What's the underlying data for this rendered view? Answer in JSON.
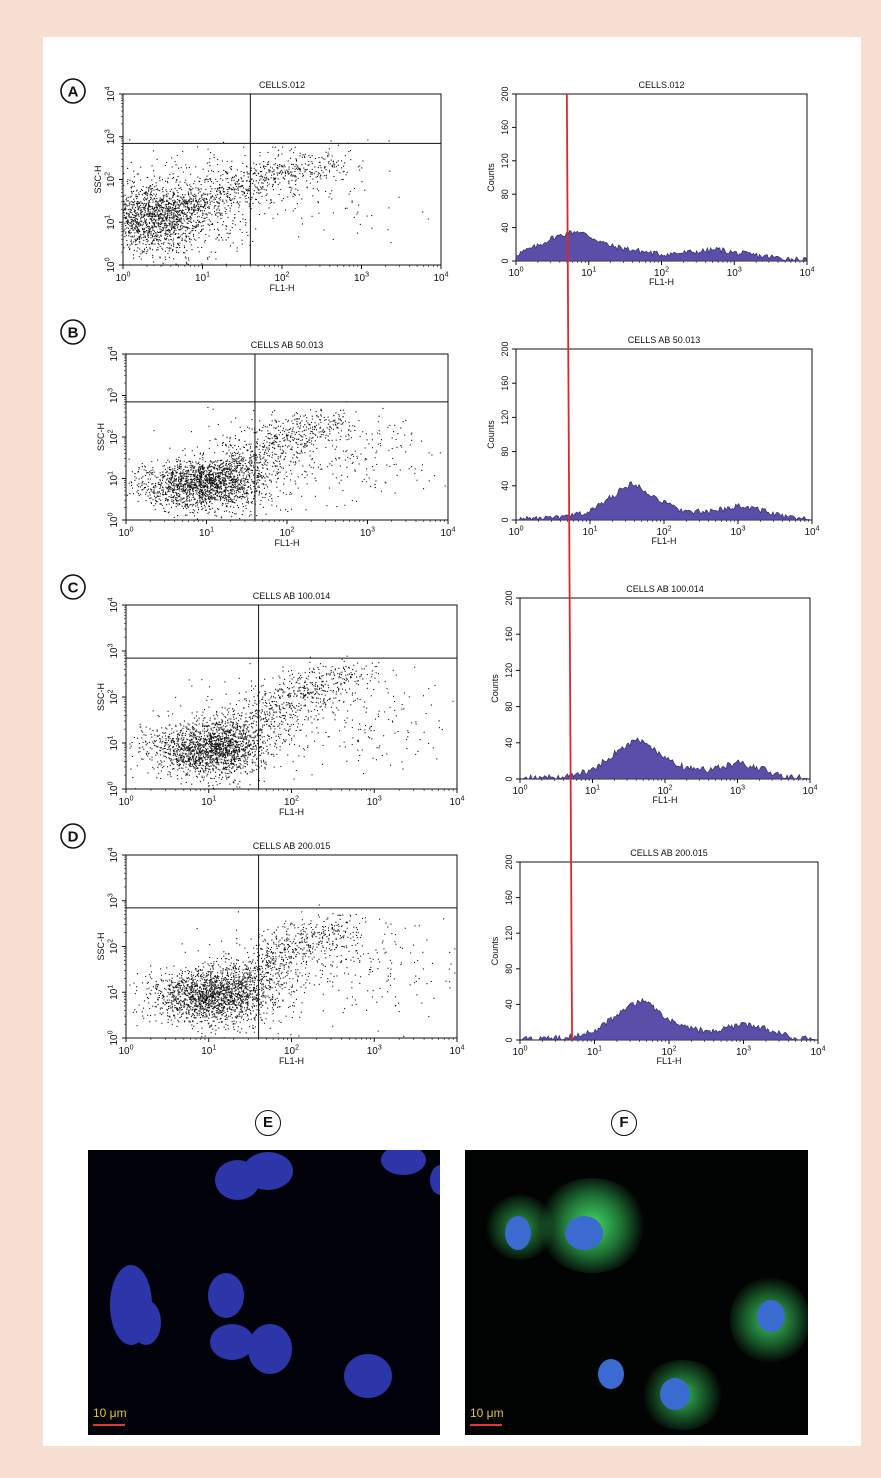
{
  "panels": [
    {
      "label": "A",
      "title": "CELLS.012",
      "cluster": [
        0.35,
        1.1,
        0.45,
        0.45,
        2.4,
        2.45,
        0.35,
        0.15,
        0.55,
        0.55
      ]
    },
    {
      "label": "B",
      "title": "CELLS AB 50.013",
      "cluster": [
        0.95,
        0.85,
        0.4,
        0.3,
        2.5,
        2.5,
        0.3,
        0.15,
        0.62,
        0.42
      ]
    },
    {
      "label": "C",
      "title": "CELLS AB 100.014",
      "cluster": [
        1.0,
        0.85,
        0.35,
        0.3,
        2.6,
        2.6,
        0.3,
        0.15,
        0.6,
        0.42
      ]
    },
    {
      "label": "D",
      "title": "CELLS AB 200.015",
      "cluster": [
        1.05,
        0.9,
        0.38,
        0.3,
        2.55,
        2.55,
        0.3,
        0.15,
        0.6,
        0.42
      ]
    }
  ],
  "chart_data": [
    {
      "type": "scatter",
      "panels": [
        "A",
        "B",
        "C",
        "D"
      ],
      "xlabel": "FL1-H",
      "ylabel": "SSC-H",
      "x_scale": "log",
      "y_scale": "log",
      "xlim": [
        1,
        10000
      ],
      "ylim": [
        1,
        10000
      ],
      "x_ticks": [
        "10^0",
        "10^1",
        "10^2",
        "10^3",
        "10^4"
      ],
      "y_ticks": [
        "10^0",
        "10^1",
        "10^2",
        "10^3",
        "10^4"
      ],
      "quadrant_gate": {
        "x": 40,
        "y": 700
      }
    },
    {
      "type": "area",
      "panels": [
        "A",
        "B",
        "C",
        "D"
      ],
      "xlabel": "FL1-H",
      "ylabel": "Counts",
      "x_scale": "log",
      "xlim": [
        1,
        10000
      ],
      "ylim": [
        0,
        200
      ],
      "y_ticks": [
        0,
        40,
        80,
        120,
        160,
        200
      ],
      "x_ticks": [
        "10^0",
        "10^1",
        "10^2",
        "10^3",
        "10^4"
      ],
      "marker_line": {
        "x": 5,
        "color": "#e0262a"
      },
      "fill_color": "#5a4fa8",
      "series": [
        {
          "panel": "A",
          "x": [
            1,
            2,
            3,
            5,
            7,
            10,
            20,
            50,
            100,
            300,
            600,
            1000,
            3000,
            10000
          ],
          "y": [
            8,
            18,
            27,
            33,
            36,
            30,
            18,
            12,
            8,
            11,
            14,
            10,
            5,
            1
          ]
        },
        {
          "panel": "B",
          "x": [
            1,
            3,
            5,
            10,
            20,
            35,
            50,
            100,
            200,
            400,
            1000,
            2000,
            4000,
            10000
          ],
          "y": [
            1,
            2,
            4,
            10,
            28,
            42,
            38,
            20,
            10,
            9,
            17,
            12,
            4,
            0
          ]
        },
        {
          "panel": "C",
          "x": [
            1,
            3,
            5,
            10,
            20,
            40,
            60,
            100,
            200,
            400,
            1000,
            2000,
            4000,
            10000
          ],
          "y": [
            1,
            2,
            4,
            10,
            28,
            44,
            38,
            22,
            12,
            10,
            18,
            12,
            4,
            0
          ]
        },
        {
          "panel": "D",
          "x": [
            1,
            3,
            5,
            10,
            20,
            40,
            60,
            100,
            200,
            400,
            1000,
            2000,
            4000,
            10000
          ],
          "y": [
            1,
            2,
            4,
            10,
            28,
            45,
            38,
            22,
            12,
            10,
            18,
            13,
            4,
            0
          ]
        }
      ]
    }
  ],
  "micrographs": [
    {
      "label": "E",
      "scale": "10 μm"
    },
    {
      "label": "F",
      "scale": "10 μm"
    }
  ],
  "colors": {
    "nucleus": "#3342c8",
    "fitc": "#38d060",
    "gate_line": "#e0262a",
    "hist_fill": "#5a4fa8"
  }
}
